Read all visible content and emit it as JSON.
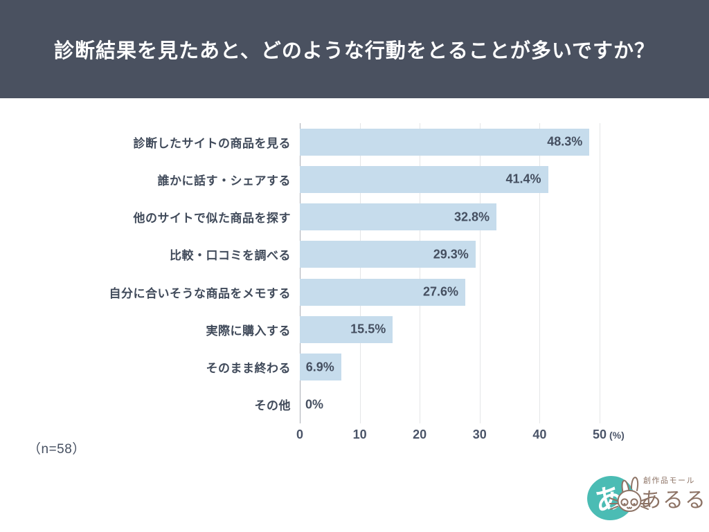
{
  "header": {
    "title": "診断結果を見たあと、どのような行動をとることが多いですか？"
  },
  "chart_data": {
    "type": "bar",
    "orientation": "horizontal",
    "categories": [
      "診断したサイトの商品を見る",
      "誰かに話す・シェアする",
      "他のサイトで似た商品を探す",
      "比較・口コミを調べる",
      "自分に合いそうな商品をメモする",
      "実際に購入する",
      "そのまま終わる",
      "その他"
    ],
    "values": [
      48.3,
      41.4,
      32.8,
      29.3,
      27.6,
      15.5,
      6.9,
      0
    ],
    "value_labels": [
      "48.3%",
      "41.4%",
      "32.8%",
      "29.3%",
      "27.6%",
      "15.5%",
      "6.9%",
      "0%"
    ],
    "xlim": [
      0,
      50
    ],
    "x_ticks": [
      "0",
      "10",
      "20",
      "30",
      "40",
      "50"
    ],
    "x_unit": "(%)",
    "grid": true,
    "legend_position": "none",
    "bar_color": "#c6dcec"
  },
  "note": {
    "sample_size": "（n=58）"
  },
  "logo": {
    "badge": "あ!",
    "tagline": "創作品モール",
    "brand": "あるる",
    "teal": "#4bbcb4",
    "brown": "#8d7365"
  }
}
